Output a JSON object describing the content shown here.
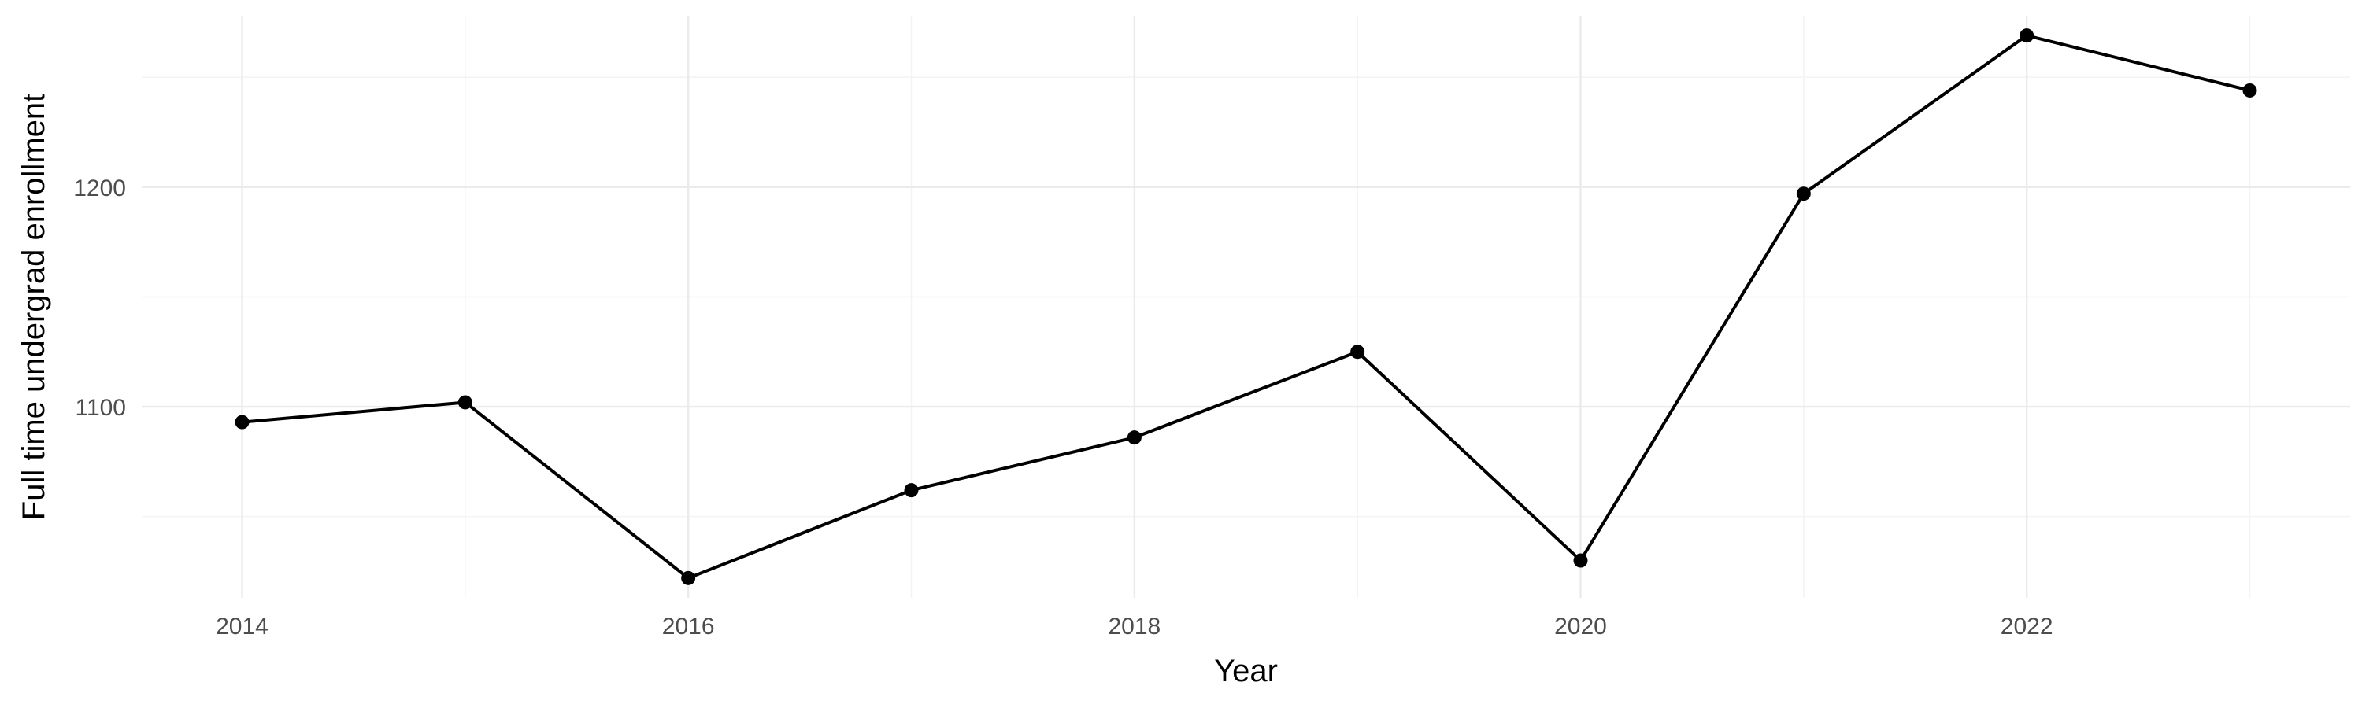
{
  "chart_data": {
    "type": "line",
    "title": "",
    "xlabel": "Year",
    "ylabel": "Full time undergrad enrollment",
    "x": [
      2014,
      2015,
      2016,
      2017,
      2018,
      2019,
      2020,
      2021,
      2022,
      2023
    ],
    "series": [
      {
        "values": [
          1093,
          1102,
          1022,
          1062,
          1086,
          1125,
          1030,
          1197,
          1269,
          1244
        ]
      }
    ],
    "xlim": [
      2013.55,
      2023.45
    ],
    "ylim": [
      1013,
      1278
    ],
    "x_ticks": [
      "2014",
      "2016",
      "2018",
      "2020",
      "2022"
    ],
    "y_ticks": [
      "1100",
      "1200"
    ],
    "grid": true,
    "legend": "none",
    "colors": {
      "line": "#000000",
      "point": "#000000",
      "grid_major": "#ebebeb",
      "grid_minor": "#f4f4f4",
      "background": "#ffffff"
    }
  }
}
